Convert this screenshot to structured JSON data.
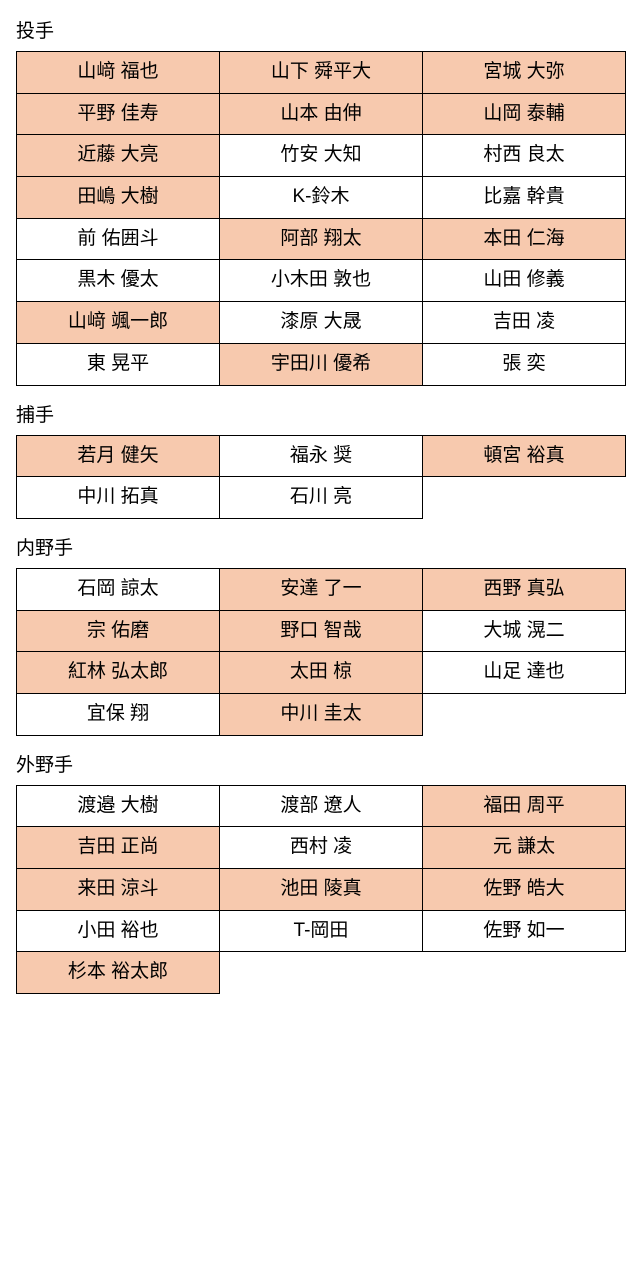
{
  "colors": {
    "highlight": "#f7c9ae",
    "background": "#ffffff",
    "border": "#000000",
    "text": "#000000"
  },
  "layout": {
    "columns": 3,
    "cell_font_size": 19,
    "title_font_size": 19
  },
  "sections": [
    {
      "title": "投手",
      "cells": [
        {
          "label": "山﨑 福也",
          "hl": true
        },
        {
          "label": "山下 舜平大",
          "hl": true
        },
        {
          "label": "宮城 大弥",
          "hl": true
        },
        {
          "label": "平野 佳寿",
          "hl": true
        },
        {
          "label": "山本 由伸",
          "hl": true
        },
        {
          "label": "山岡 泰輔",
          "hl": true
        },
        {
          "label": "近藤 大亮",
          "hl": true
        },
        {
          "label": "竹安 大知",
          "hl": false
        },
        {
          "label": "村西 良太",
          "hl": false
        },
        {
          "label": "田嶋 大樹",
          "hl": true
        },
        {
          "label": "K-鈴木",
          "hl": false
        },
        {
          "label": "比嘉 幹貴",
          "hl": false
        },
        {
          "label": "前 佑囲斗",
          "hl": false
        },
        {
          "label": "阿部 翔太",
          "hl": true
        },
        {
          "label": "本田 仁海",
          "hl": true
        },
        {
          "label": "黒木 優太",
          "hl": false
        },
        {
          "label": "小木田 敦也",
          "hl": false
        },
        {
          "label": "山田 修義",
          "hl": false
        },
        {
          "label": "山﨑 颯一郎",
          "hl": true
        },
        {
          "label": "漆原 大晟",
          "hl": false
        },
        {
          "label": "吉田 凌",
          "hl": false
        },
        {
          "label": "東 晃平",
          "hl": false
        },
        {
          "label": "宇田川 優希",
          "hl": true
        },
        {
          "label": "張 奕",
          "hl": false
        }
      ]
    },
    {
      "title": "捕手",
      "cells": [
        {
          "label": "若月 健矢",
          "hl": true
        },
        {
          "label": "福永 奨",
          "hl": false
        },
        {
          "label": "頓宮 裕真",
          "hl": true
        },
        {
          "label": "中川 拓真",
          "hl": false
        },
        {
          "label": "石川 亮",
          "hl": false
        },
        {
          "label": "",
          "ghost": true
        }
      ]
    },
    {
      "title": "内野手",
      "cells": [
        {
          "label": "石岡 諒太",
          "hl": false
        },
        {
          "label": "安達 了一",
          "hl": true
        },
        {
          "label": "西野 真弘",
          "hl": true
        },
        {
          "label": "宗 佑磨",
          "hl": true
        },
        {
          "label": "野口 智哉",
          "hl": true
        },
        {
          "label": "大城 滉二",
          "hl": false
        },
        {
          "label": "紅林 弘太郎",
          "hl": true
        },
        {
          "label": "太田 椋",
          "hl": true
        },
        {
          "label": "山足 達也",
          "hl": false
        },
        {
          "label": "宜保 翔",
          "hl": false
        },
        {
          "label": "中川 圭太",
          "hl": true
        },
        {
          "label": "",
          "ghost": true
        }
      ]
    },
    {
      "title": "外野手",
      "cells": [
        {
          "label": "渡邉 大樹",
          "hl": false
        },
        {
          "label": "渡部 遼人",
          "hl": false
        },
        {
          "label": "福田 周平",
          "hl": true
        },
        {
          "label": "吉田 正尚",
          "hl": true
        },
        {
          "label": "西村 凌",
          "hl": false
        },
        {
          "label": "元 謙太",
          "hl": true
        },
        {
          "label": "来田 涼斗",
          "hl": true
        },
        {
          "label": "池田 陵真",
          "hl": true
        },
        {
          "label": "佐野 皓大",
          "hl": true
        },
        {
          "label": "小田 裕也",
          "hl": false
        },
        {
          "label": "T-岡田",
          "hl": false
        },
        {
          "label": "佐野 如一",
          "hl": false
        },
        {
          "label": "杉本 裕太郎",
          "hl": true
        },
        {
          "label": "",
          "ghost": true
        },
        {
          "label": "",
          "ghost": true
        }
      ]
    }
  ]
}
